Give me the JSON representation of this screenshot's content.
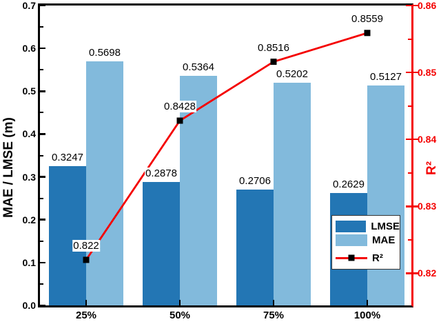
{
  "chart_data": {
    "type": "bar+line",
    "categories": [
      "25%",
      "50%",
      "75%",
      "100%"
    ],
    "series": [
      {
        "name": "LMSE",
        "type": "bar",
        "axis": "left",
        "color": "#2376b4",
        "values": [
          0.3247,
          0.2878,
          0.2706,
          0.2629
        ],
        "labels": [
          "0.3247",
          "0.2878",
          "0.2706",
          "0.2629"
        ]
      },
      {
        "name": "MAE",
        "type": "bar",
        "axis": "left",
        "color": "#82badc",
        "values": [
          0.5698,
          0.5364,
          0.5202,
          0.5127
        ],
        "labels": [
          "0.5698",
          "0.5364",
          "0.5202",
          "0.5127"
        ]
      },
      {
        "name": "R²",
        "type": "line",
        "axis": "right",
        "color": "#f40000",
        "marker": "square",
        "marker_color": "#000000",
        "values": [
          0.822,
          0.8428,
          0.8516,
          0.8559
        ],
        "labels": [
          "0.822",
          "0.8428",
          "0.8516",
          "0.8559"
        ]
      }
    ],
    "left_axis": {
      "title": "MAE / LMSE (m)",
      "min": 0.0,
      "max": 0.7,
      "major_ticks": [
        "0.0",
        "0.1",
        "0.2",
        "0.3",
        "0.4",
        "0.5",
        "0.6",
        "0.7"
      ],
      "minor_ticks": [
        0.05,
        0.15,
        0.25,
        0.35,
        0.45,
        0.55,
        0.65
      ],
      "color": "#000000"
    },
    "right_axis": {
      "title": "R²",
      "min": 0.8152,
      "max": 0.86,
      "major_ticks": [
        "0.82",
        "0.83",
        "0.84",
        "0.85",
        "0.86"
      ],
      "minor_ticks": [
        0.825,
        0.835,
        0.845,
        0.855
      ],
      "color": "#f40000"
    },
    "x_axis": {
      "tick_labels": [
        "25%",
        "50%",
        "75%",
        "100%"
      ]
    },
    "legend": {
      "position": "lower-right",
      "items": [
        {
          "label": "LMSE",
          "swatch": "bar",
          "color": "#2376b4"
        },
        {
          "label": "MAE",
          "swatch": "bar",
          "color": "#82badc"
        },
        {
          "label": "R²",
          "swatch": "line-marker",
          "color": "#f40000"
        }
      ]
    },
    "grid": false
  }
}
